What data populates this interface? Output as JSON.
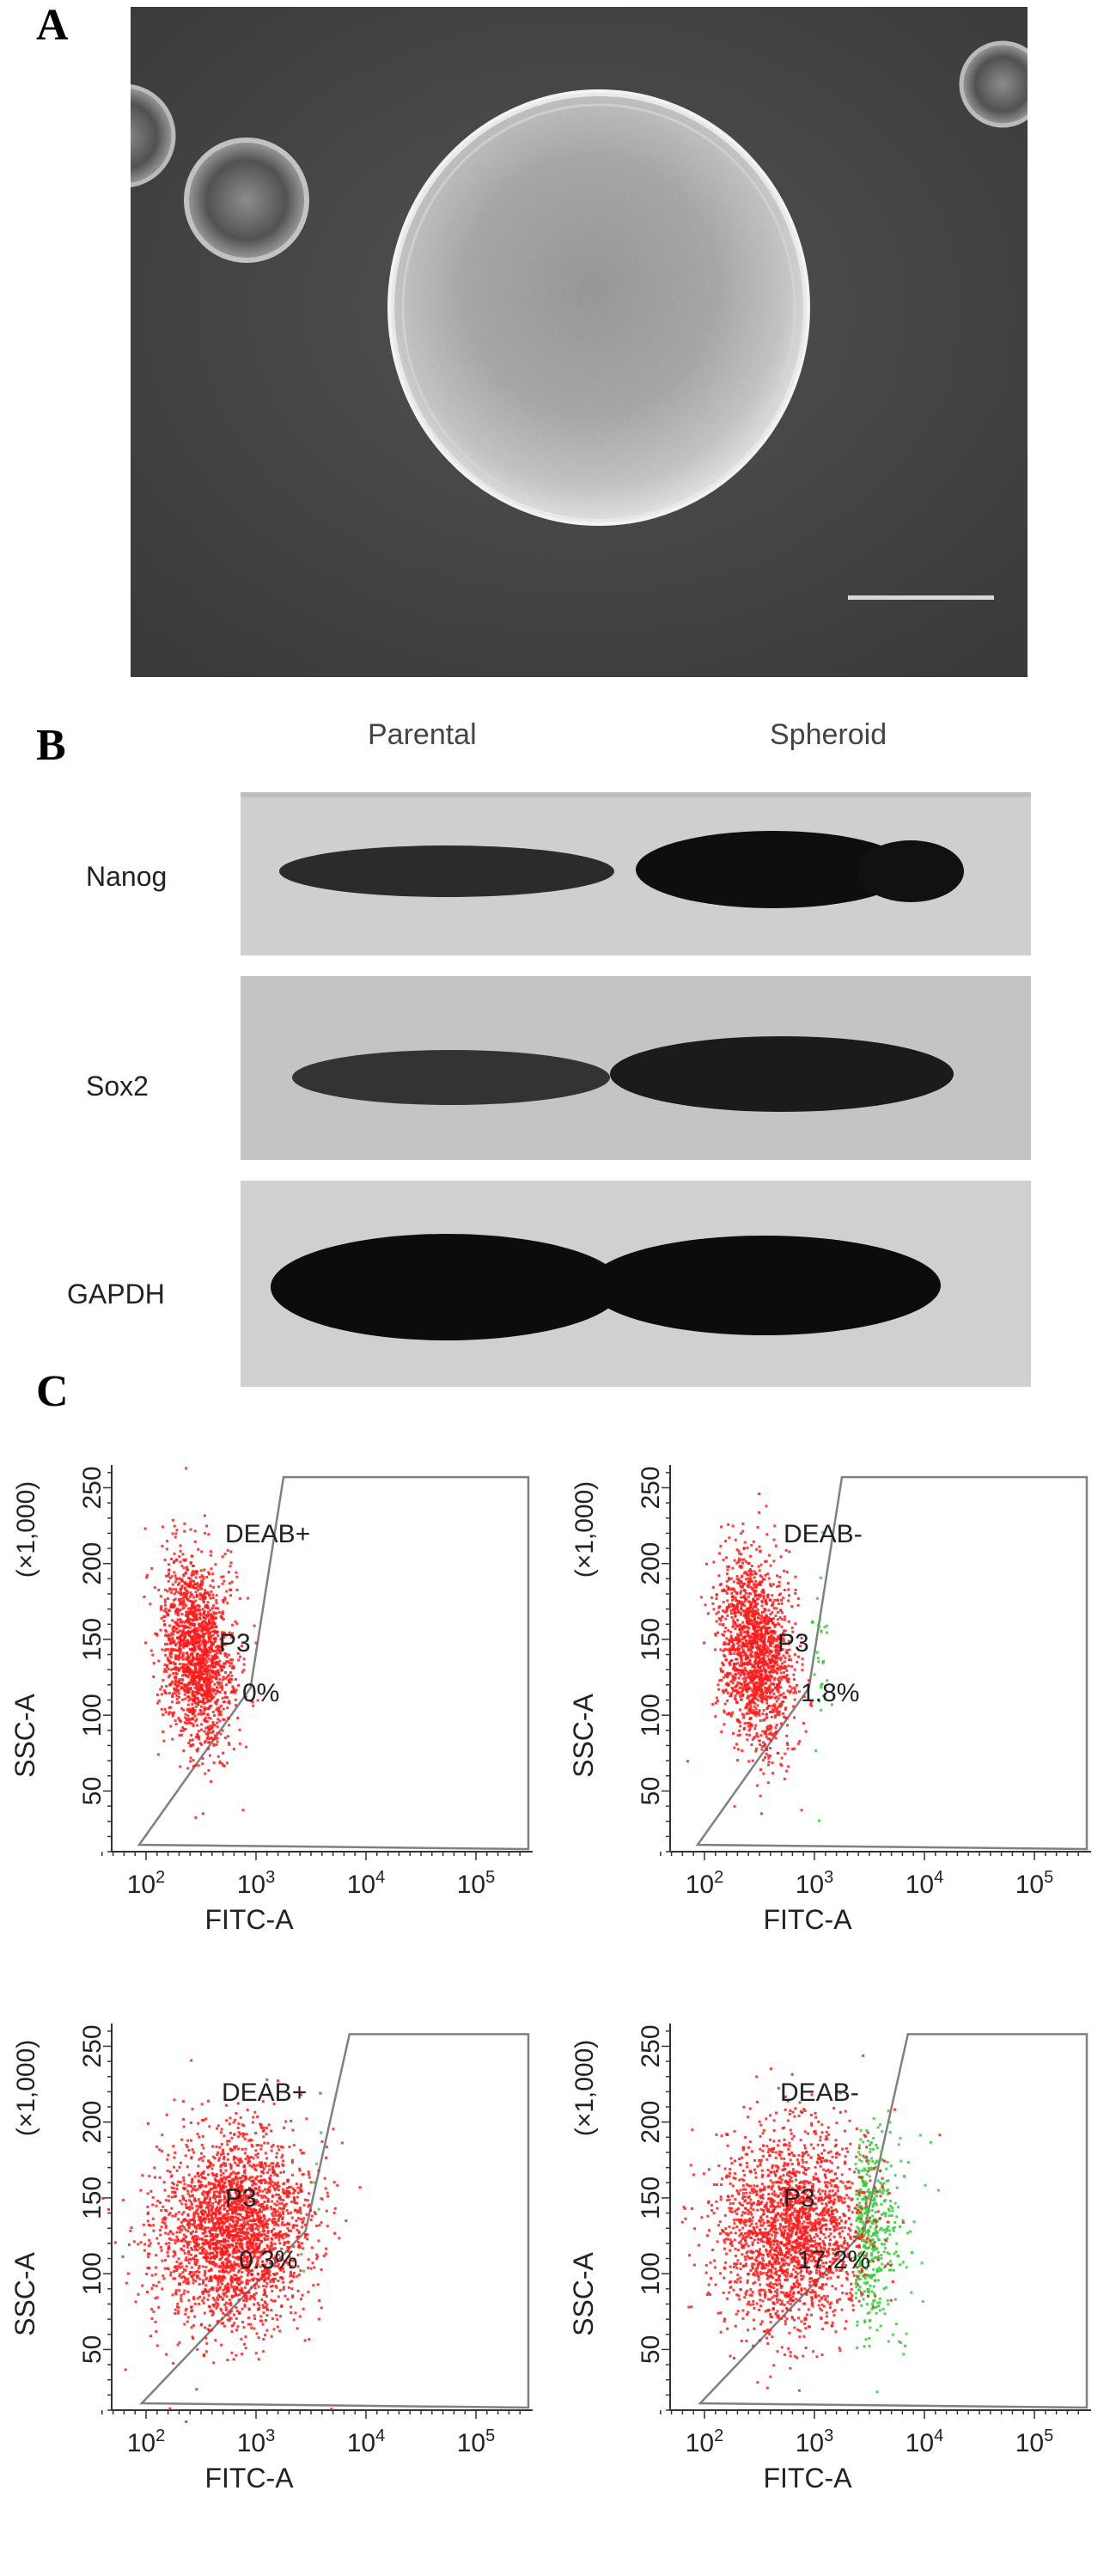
{
  "panels": {
    "a": {
      "letter": "A"
    },
    "b": {
      "letter": "B",
      "columns": [
        "Parental",
        "Spheroid"
      ],
      "rows": [
        {
          "label": "Nanog",
          "band_intensity": [
            0.72,
            1.0
          ]
        },
        {
          "label": "Sox2",
          "band_intensity": [
            0.68,
            0.92
          ]
        },
        {
          "label": "GAPDH",
          "band_intensity": [
            1.0,
            1.0
          ]
        }
      ]
    },
    "c": {
      "letter": "C"
    }
  },
  "flow_plots": [
    {
      "condition": "DEAB+",
      "gate": "P3",
      "percent": "0%",
      "cloud": "narrow",
      "green_fraction": 0.0
    },
    {
      "condition": "DEAB-",
      "gate": "P3",
      "percent": "1.8%",
      "cloud": "narrow",
      "green_fraction": 0.018
    },
    {
      "condition": "DEAB+",
      "gate": "P3",
      "percent": "0.3%",
      "cloud": "wide",
      "green_fraction": 0.003
    },
    {
      "condition": "DEAB-",
      "gate": "P3",
      "percent": "17.2%",
      "cloud": "wide",
      "green_fraction": 0.172
    }
  ],
  "axes": {
    "ylabel": "SSC-A",
    "yunit": "(×1,000)",
    "xlabel": "FITC-A",
    "yticks": [
      "50",
      "100",
      "150",
      "200",
      "250"
    ],
    "xticks": [
      {
        "base": "10",
        "exp": "2"
      },
      {
        "base": "10",
        "exp": "3"
      },
      {
        "base": "10",
        "exp": "4"
      },
      {
        "base": "10",
        "exp": "5"
      }
    ]
  },
  "colors": {
    "population": "#ff1a1a",
    "aldh_positive": "#33cc33",
    "gate_line": "#808080",
    "micrograph_bg": "#4a4a4a",
    "blot_bg": "#c8c8c8",
    "band": "#141414"
  }
}
